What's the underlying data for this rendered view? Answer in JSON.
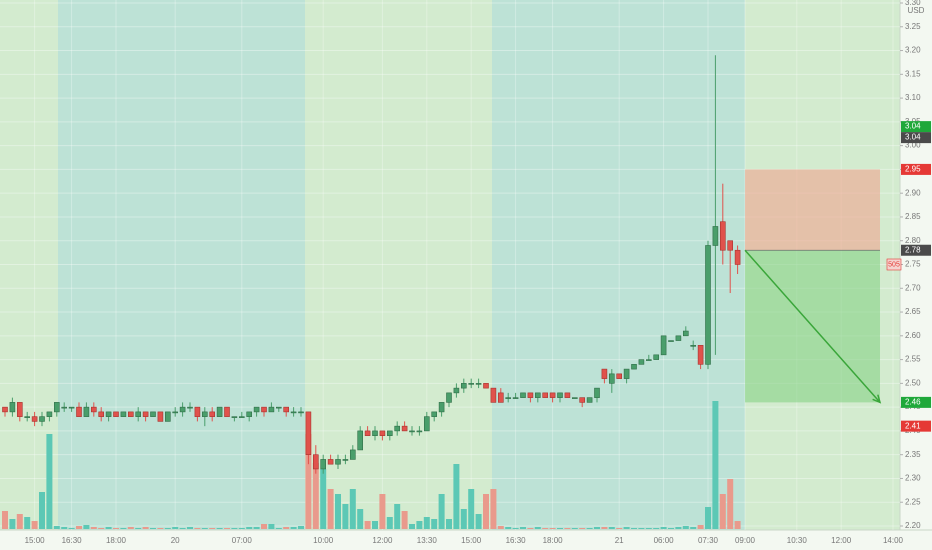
{
  "chart_data": {
    "type": "candlestick",
    "currency": "USD",
    "ylim": [
      2.2,
      3.3
    ],
    "yticks": [
      {
        "value": 2.2,
        "label": "2.20"
      },
      {
        "value": 2.25,
        "label": "2.25"
      },
      {
        "value": 2.3,
        "label": "2.30"
      },
      {
        "value": 2.35,
        "label": "2.35"
      },
      {
        "value": 2.4,
        "label": "2.40"
      },
      {
        "value": 2.45,
        "label": "2.45"
      },
      {
        "value": 2.5,
        "label": "2.50"
      },
      {
        "value": 2.55,
        "label": "2.55"
      },
      {
        "value": 2.6,
        "label": "2.60"
      },
      {
        "value": 2.65,
        "label": "2.65"
      },
      {
        "value": 2.7,
        "label": "2.70"
      },
      {
        "value": 2.75,
        "label": "2.75"
      },
      {
        "value": 2.8,
        "label": "2.80"
      },
      {
        "value": 2.85,
        "label": "2.85"
      },
      {
        "value": 2.9,
        "label": "2.90"
      },
      {
        "value": 2.95,
        "label": "2.95"
      },
      {
        "value": 3.0,
        "label": "3.00"
      },
      {
        "value": 3.05,
        "label": "3.05"
      },
      {
        "value": 3.1,
        "label": "3.10"
      },
      {
        "value": 3.15,
        "label": "3.15"
      },
      {
        "value": 3.2,
        "label": "3.20"
      },
      {
        "value": 3.25,
        "label": "3.25"
      },
      {
        "value": 3.3,
        "label": "3.30"
      }
    ],
    "grid": true,
    "up_color": "#4a9e6b",
    "down_color": "#e0524c",
    "volume_up_color": "#5cc8b5",
    "volume_down_color": "#e99a8c",
    "categories": [
      null,
      null,
      null,
      null,
      "15:00",
      null,
      null,
      null,
      null,
      "16:30",
      null,
      null,
      null,
      null,
      null,
      "18:00",
      null,
      null,
      null,
      null,
      null,
      null,
      null,
      "20",
      null,
      null,
      null,
      null,
      null,
      null,
      null,
      null,
      "07:00",
      null,
      null,
      null,
      null,
      null,
      null,
      null,
      null,
      null,
      null,
      "10:00",
      null,
      null,
      null,
      null,
      null,
      null,
      null,
      "12:00",
      null,
      null,
      null,
      null,
      null,
      "13:30",
      null,
      null,
      null,
      null,
      null,
      "15:00",
      null,
      null,
      null,
      null,
      null,
      "16:30",
      null,
      null,
      null,
      null,
      "18:00",
      null,
      null,
      null,
      null,
      null,
      null,
      null,
      null,
      "21",
      null,
      null,
      null,
      null,
      null,
      "06:00",
      null,
      null,
      null,
      null,
      null,
      "07:30",
      null,
      null,
      null,
      null,
      "09:00",
      null,
      null,
      null,
      null,
      null,
      null,
      "10:30",
      null,
      null,
      null,
      null,
      null,
      "12:00",
      null,
      null,
      null,
      null,
      null,
      null,
      "14:00"
    ],
    "open": [
      2.45,
      2.44,
      2.46,
      2.43,
      2.43,
      2.42,
      2.43,
      2.44,
      2.45,
      2.45,
      2.45,
      2.43,
      2.45,
      2.44,
      2.43,
      2.44,
      2.43,
      2.44,
      2.43,
      2.44,
      2.43,
      2.44,
      2.42,
      2.44,
      2.44,
      2.45,
      2.45,
      2.43,
      2.44,
      2.43,
      2.45,
      2.43,
      2.43,
      2.43,
      2.44,
      2.45,
      2.44,
      2.45,
      2.45,
      2.44,
      2.44,
      2.44,
      2.35,
      2.32,
      2.34,
      2.33,
      2.34,
      2.34,
      2.36,
      2.4,
      2.39,
      2.4,
      2.39,
      2.4,
      2.41,
      2.4,
      2.4,
      2.4,
      2.43,
      2.44,
      2.46,
      2.48,
      2.49,
      2.5,
      2.5,
      2.5,
      2.49,
      2.48,
      2.47,
      2.47,
      2.47,
      2.48,
      2.47,
      2.48,
      2.48,
      2.47,
      2.48,
      2.47,
      2.47,
      2.46,
      2.47,
      2.53,
      2.5,
      2.52,
      2.51,
      2.53,
      2.54,
      2.55,
      2.55,
      2.56,
      2.59,
      2.59,
      2.6,
      2.58,
      2.58,
      2.54,
      2.79,
      2.84,
      2.8,
      2.78,
      null,
      null,
      null,
      null,
      null,
      null,
      null,
      null,
      null,
      null,
      null,
      null,
      null,
      null,
      null,
      null,
      null,
      null,
      null,
      null,
      null
    ],
    "high": [
      2.45,
      2.47,
      2.46,
      2.44,
      2.44,
      2.44,
      2.44,
      2.46,
      2.46,
      2.45,
      2.46,
      2.46,
      2.46,
      2.45,
      2.44,
      2.44,
      2.44,
      2.44,
      2.45,
      2.44,
      2.44,
      2.44,
      2.44,
      2.45,
      2.46,
      2.46,
      2.45,
      2.45,
      2.45,
      2.45,
      2.45,
      2.43,
      2.44,
      2.44,
      2.45,
      2.45,
      2.46,
      2.45,
      2.45,
      2.45,
      2.45,
      2.44,
      2.37,
      2.35,
      2.35,
      2.35,
      2.35,
      2.37,
      2.41,
      2.41,
      2.41,
      2.4,
      2.4,
      2.42,
      2.42,
      2.41,
      2.41,
      2.44,
      2.44,
      2.46,
      2.48,
      2.5,
      2.51,
      2.51,
      2.51,
      2.5,
      2.49,
      2.49,
      2.48,
      2.48,
      2.48,
      2.48,
      2.48,
      2.48,
      2.48,
      2.48,
      2.48,
      2.47,
      2.47,
      2.47,
      2.49,
      2.53,
      2.53,
      2.52,
      2.53,
      2.54,
      2.55,
      2.56,
      2.56,
      2.6,
      2.59,
      2.6,
      2.62,
      2.59,
      2.58,
      2.8,
      3.19,
      2.92,
      2.8,
      2.79,
      null,
      null,
      null,
      null,
      null,
      null,
      null,
      null,
      null,
      null,
      null,
      null,
      null,
      null,
      null,
      null,
      null,
      null,
      null,
      null,
      null
    ],
    "low": [
      2.43,
      2.43,
      2.42,
      2.42,
      2.41,
      2.41,
      2.42,
      2.43,
      2.44,
      2.44,
      2.43,
      2.43,
      2.43,
      2.42,
      2.42,
      2.43,
      2.43,
      2.43,
      2.42,
      2.42,
      2.43,
      2.42,
      2.42,
      2.43,
      2.43,
      2.44,
      2.42,
      2.41,
      2.42,
      2.43,
      2.43,
      2.42,
      2.43,
      2.42,
      2.43,
      2.43,
      2.44,
      2.44,
      2.43,
      2.43,
      2.43,
      2.33,
      2.31,
      2.31,
      2.33,
      2.32,
      2.33,
      2.34,
      2.36,
      2.39,
      2.38,
      2.38,
      2.38,
      2.39,
      2.4,
      2.39,
      2.39,
      2.4,
      2.42,
      2.43,
      2.45,
      2.47,
      2.48,
      2.49,
      2.49,
      2.49,
      2.46,
      2.46,
      2.46,
      2.47,
      2.47,
      2.46,
      2.46,
      2.47,
      2.46,
      2.46,
      2.47,
      2.47,
      2.45,
      2.46,
      2.46,
      2.5,
      2.48,
      2.51,
      2.5,
      2.53,
      2.54,
      2.55,
      2.55,
      2.56,
      2.59,
      2.59,
      2.6,
      2.57,
      2.53,
      2.53,
      2.56,
      2.75,
      2.69,
      2.73,
      null,
      null,
      null,
      null,
      null,
      null,
      null,
      null,
      null,
      null,
      null,
      null,
      null,
      null,
      null,
      null,
      null,
      null,
      null,
      null,
      null
    ],
    "close": [
      2.44,
      2.46,
      2.43,
      2.43,
      2.42,
      2.43,
      2.44,
      2.46,
      2.45,
      2.45,
      2.43,
      2.45,
      2.44,
      2.43,
      2.44,
      2.43,
      2.44,
      2.43,
      2.44,
      2.43,
      2.44,
      2.42,
      2.44,
      2.44,
      2.45,
      2.45,
      2.43,
      2.44,
      2.43,
      2.45,
      2.43,
      2.43,
      2.43,
      2.44,
      2.45,
      2.44,
      2.45,
      2.45,
      2.44,
      2.44,
      2.44,
      2.35,
      2.32,
      2.34,
      2.33,
      2.34,
      2.34,
      2.36,
      2.4,
      2.39,
      2.4,
      2.39,
      2.4,
      2.41,
      2.4,
      2.4,
      2.4,
      2.43,
      2.44,
      2.46,
      2.48,
      2.49,
      2.5,
      2.5,
      2.5,
      2.49,
      2.46,
      2.46,
      2.47,
      2.47,
      2.48,
      2.47,
      2.48,
      2.47,
      2.47,
      2.48,
      2.47,
      2.47,
      2.46,
      2.47,
      2.49,
      2.51,
      2.52,
      2.51,
      2.53,
      2.54,
      2.55,
      2.55,
      2.56,
      2.6,
      2.59,
      2.6,
      2.61,
      2.58,
      2.54,
      2.79,
      2.83,
      2.78,
      2.78,
      2.75,
      null,
      null,
      null,
      null,
      null,
      null,
      null,
      null,
      null,
      null,
      null,
      null,
      null,
      null,
      null,
      null,
      null,
      null,
      null,
      null,
      null
    ],
    "volume": [
      18,
      10,
      15,
      12,
      8,
      37,
      95,
      3,
      2,
      1,
      3,
      4,
      2,
      1,
      2,
      1,
      1,
      2,
      1,
      2,
      1,
      1,
      1,
      2,
      1,
      2,
      1,
      1,
      1,
      1,
      1,
      1,
      1,
      2,
      2,
      5,
      5,
      1,
      2,
      2,
      3,
      95,
      66,
      60,
      40,
      35,
      25,
      40,
      20,
      8,
      8,
      35,
      12,
      25,
      18,
      5,
      8,
      12,
      10,
      35,
      10,
      65,
      20,
      40,
      15,
      35,
      40,
      3,
      2,
      1,
      2,
      1,
      2,
      1,
      1,
      1,
      1,
      1,
      1,
      1,
      2,
      2,
      2,
      1,
      2,
      1,
      1,
      1,
      1,
      2,
      1,
      2,
      3,
      2,
      4,
      22,
      128,
      35,
      50,
      8,
      null,
      null,
      null,
      null,
      null,
      null,
      null,
      null,
      null,
      null,
      null,
      null,
      null,
      null,
      null,
      null,
      null,
      null,
      null,
      null,
      null
    ],
    "position": {
      "stop": 2.95,
      "entry": 2.78,
      "target": 2.46,
      "stop_color": "#f0a58f",
      "target_color": "#7fd07f"
    },
    "price_labels": [
      {
        "value": 3.04,
        "label": "3.04",
        "color": "#1fa83a"
      },
      {
        "value": 3.04,
        "label": "3.04",
        "color": "#4a4a4a"
      },
      {
        "value": 2.95,
        "label": "2.95",
        "color": "#e53935"
      },
      {
        "value": 2.78,
        "label": "2.78",
        "color": "#4a4a4a"
      },
      {
        "value": 2.46,
        "label": "2.46",
        "color": "#1fa83a"
      },
      {
        "value": 2.41,
        "label": "2.41",
        "color": "#e53935"
      }
    ],
    "countdown": "505"
  }
}
